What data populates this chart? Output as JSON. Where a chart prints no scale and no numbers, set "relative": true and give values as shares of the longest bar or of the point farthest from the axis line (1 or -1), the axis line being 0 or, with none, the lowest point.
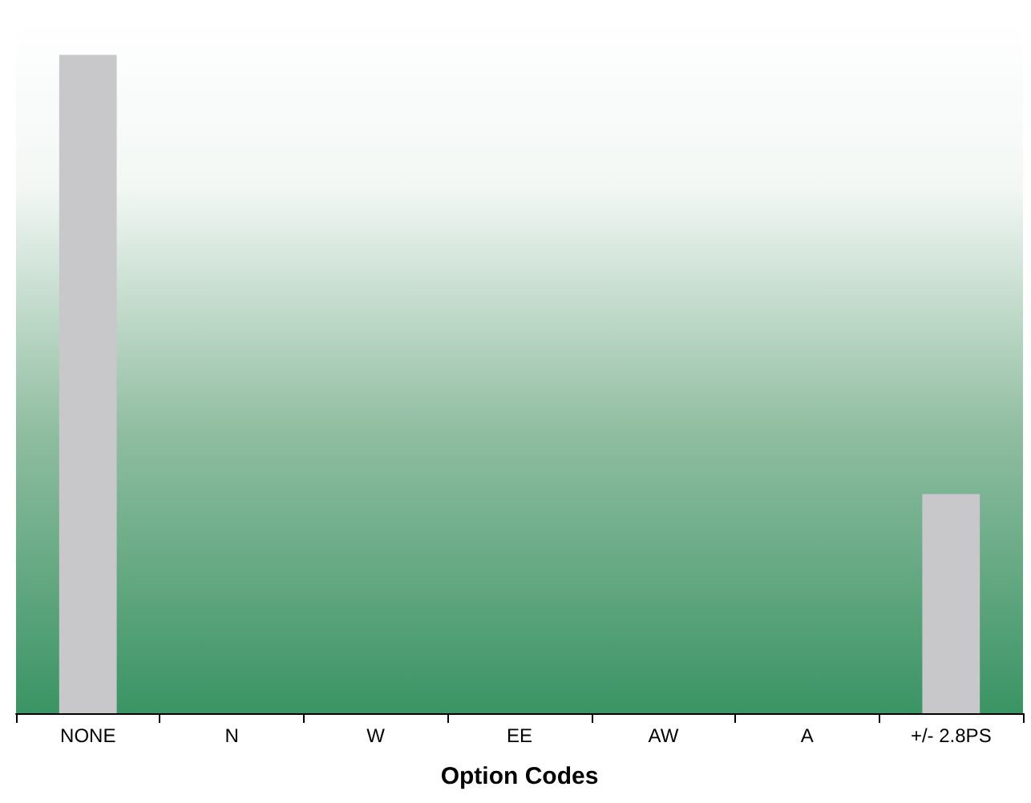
{
  "chart_data": {
    "type": "bar",
    "relative": true,
    "xlabel": "Option Codes",
    "categories": [
      "NONE",
      "N",
      "W",
      "EE",
      "AW",
      "A",
      "+/- 2.8PS"
    ],
    "values": [
      1,
      0,
      0,
      0,
      0,
      0,
      0.333
    ],
    "color": "#c8c8ca"
  }
}
